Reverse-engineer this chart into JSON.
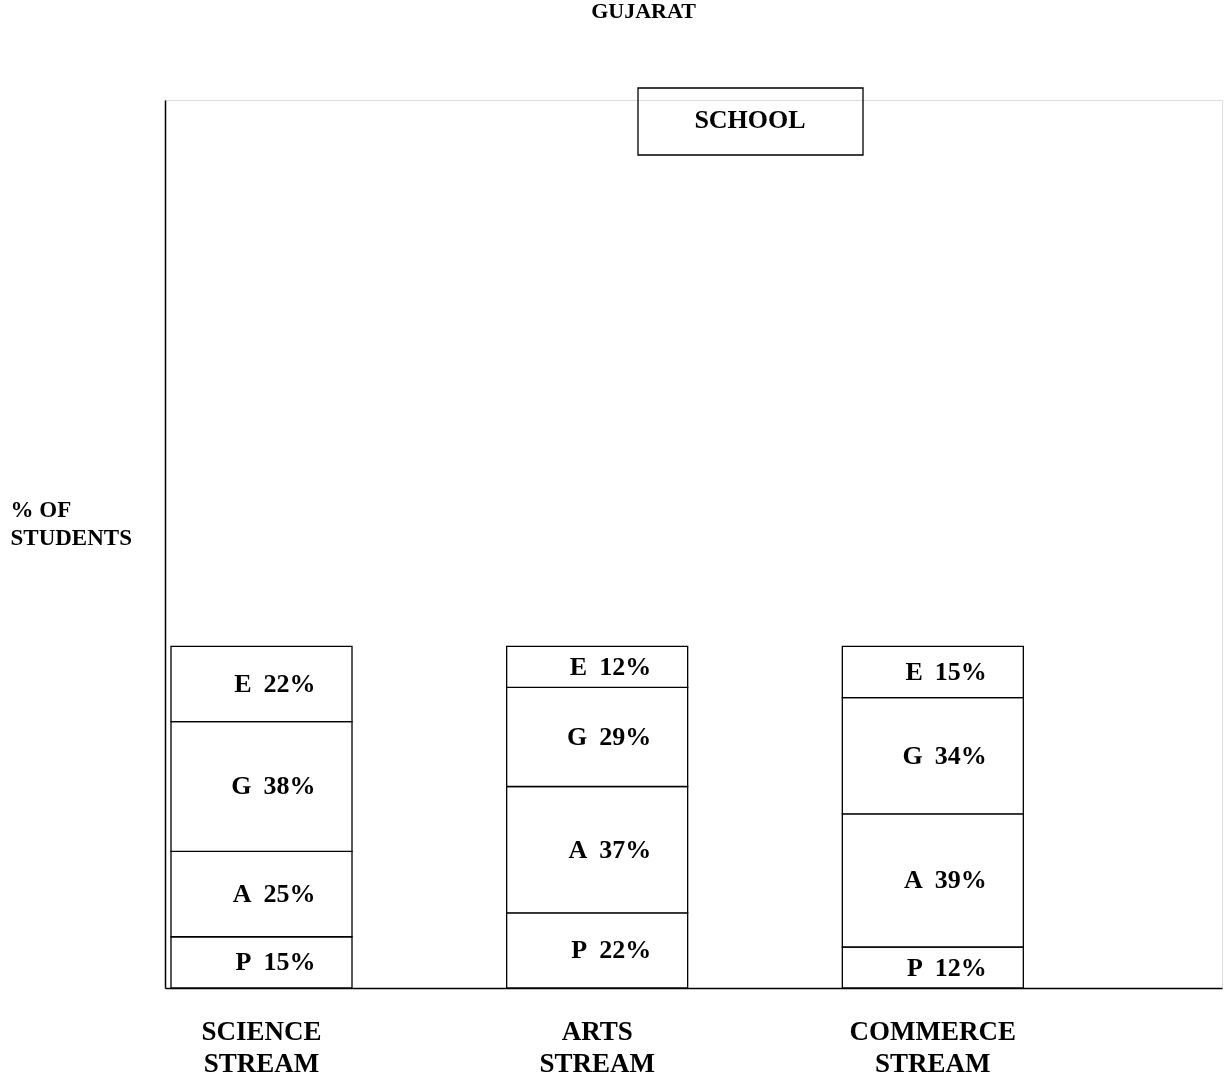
{
  "chart_data": {
    "type": "bar",
    "stacked": true,
    "title": "GUJARAT",
    "ylabel": "% OF\nSTUDENTS",
    "categories": [
      "SCIENCE STREAM",
      "ARTS STREAM",
      "COMMERCE STREAM"
    ],
    "series": [
      {
        "name": "P",
        "color": "#ffffff",
        "values": [
          15,
          22,
          12
        ],
        "value_labels": [
          "15%",
          "22%",
          "12%"
        ]
      },
      {
        "name": "A",
        "color": "#ffffff",
        "values": [
          25,
          37,
          39
        ],
        "value_labels": [
          "25%",
          "37%",
          "39%"
        ]
      },
      {
        "name": "G",
        "color": "#ffffff",
        "values": [
          38,
          29,
          34
        ],
        "value_labels": [
          "38%",
          "29%",
          "34%"
        ]
      },
      {
        "name": "E",
        "color": "#ffffff",
        "values": [
          22,
          12,
          15
        ],
        "value_labels": [
          "22%",
          "12%",
          "15%"
        ]
      }
    ],
    "annotations": [
      "SCHOOL"
    ],
    "ylim": [
      0,
      260
    ],
    "tick_labels": "x",
    "grid": false
  }
}
